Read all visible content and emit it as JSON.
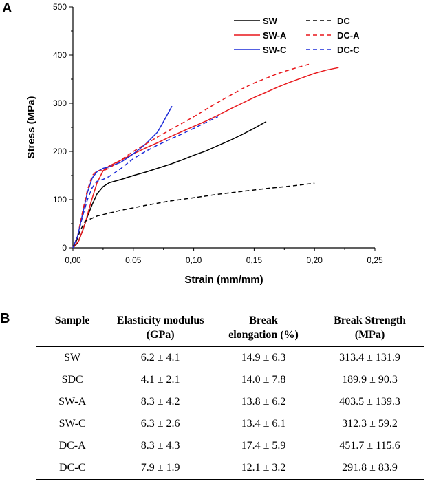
{
  "panels": {
    "a": "A",
    "b": "B"
  },
  "chart_data": {
    "type": "line",
    "xlabel": "Strain (mm/mm)",
    "ylabel": "Stress (MPa)",
    "xlim": [
      0,
      0.25
    ],
    "ylim": [
      0,
      500
    ],
    "x_ticks": [
      "0,00",
      "0,05",
      "0,10",
      "0,15",
      "0,20",
      "0,25"
    ],
    "y_ticks": [
      "0",
      "100",
      "200",
      "300",
      "400",
      "500"
    ],
    "x_tick_values": [
      0,
      0.05,
      0.1,
      0.15,
      0.2,
      0.25
    ],
    "y_tick_values": [
      0,
      100,
      200,
      300,
      400,
      500
    ],
    "legend_position": "top-right",
    "series": [
      {
        "name": "SW",
        "color": "#000000",
        "dash": "solid",
        "points": [
          [
            0,
            0
          ],
          [
            0.004,
            10
          ],
          [
            0.008,
            35
          ],
          [
            0.012,
            65
          ],
          [
            0.016,
            90
          ],
          [
            0.02,
            112
          ],
          [
            0.025,
            127
          ],
          [
            0.03,
            135
          ],
          [
            0.04,
            142
          ],
          [
            0.05,
            150
          ],
          [
            0.06,
            157
          ],
          [
            0.07,
            165
          ],
          [
            0.08,
            173
          ],
          [
            0.09,
            182
          ],
          [
            0.1,
            192
          ],
          [
            0.11,
            201
          ],
          [
            0.12,
            212
          ],
          [
            0.13,
            223
          ],
          [
            0.14,
            235
          ],
          [
            0.15,
            248
          ],
          [
            0.16,
            262
          ]
        ]
      },
      {
        "name": "SW-A",
        "color": "#e8171b",
        "dash": "solid",
        "points": [
          [
            0,
            0
          ],
          [
            0.005,
            15
          ],
          [
            0.01,
            50
          ],
          [
            0.015,
            95
          ],
          [
            0.02,
            135
          ],
          [
            0.025,
            160
          ],
          [
            0.03,
            170
          ],
          [
            0.04,
            182
          ],
          [
            0.05,
            195
          ],
          [
            0.06,
            207
          ],
          [
            0.07,
            218
          ],
          [
            0.08,
            230
          ],
          [
            0.09,
            241
          ],
          [
            0.1,
            252
          ],
          [
            0.11,
            263
          ],
          [
            0.12,
            275
          ],
          [
            0.13,
            288
          ],
          [
            0.14,
            300
          ],
          [
            0.15,
            312
          ],
          [
            0.16,
            323
          ],
          [
            0.17,
            334
          ],
          [
            0.18,
            344
          ],
          [
            0.19,
            353
          ],
          [
            0.2,
            362
          ],
          [
            0.21,
            369
          ],
          [
            0.22,
            374
          ]
        ]
      },
      {
        "name": "SW-C",
        "color": "#1c2bd8",
        "dash": "solid",
        "points": [
          [
            0,
            0
          ],
          [
            0.004,
            25
          ],
          [
            0.008,
            70
          ],
          [
            0.012,
            115
          ],
          [
            0.016,
            145
          ],
          [
            0.02,
            158
          ],
          [
            0.025,
            165
          ],
          [
            0.03,
            168
          ],
          [
            0.04,
            178
          ],
          [
            0.05,
            195
          ],
          [
            0.06,
            215
          ],
          [
            0.07,
            240
          ],
          [
            0.075,
            262
          ],
          [
            0.08,
            285
          ],
          [
            0.082,
            294
          ]
        ]
      },
      {
        "name": "DC",
        "color": "#000000",
        "dash": "dashed",
        "points": [
          [
            0,
            0
          ],
          [
            0.003,
            15
          ],
          [
            0.006,
            35
          ],
          [
            0.01,
            55
          ],
          [
            0.02,
            66
          ],
          [
            0.04,
            78
          ],
          [
            0.06,
            88
          ],
          [
            0.08,
            97
          ],
          [
            0.1,
            104
          ],
          [
            0.12,
            111
          ],
          [
            0.14,
            117
          ],
          [
            0.16,
            123
          ],
          [
            0.18,
            128
          ],
          [
            0.2,
            134
          ]
        ]
      },
      {
        "name": "DC-A",
        "color": "#e8171b",
        "dash": "dashed",
        "points": [
          [
            0,
            0
          ],
          [
            0.004,
            25
          ],
          [
            0.008,
            75
          ],
          [
            0.012,
            120
          ],
          [
            0.016,
            150
          ],
          [
            0.02,
            160
          ],
          [
            0.025,
            160
          ],
          [
            0.03,
            165
          ],
          [
            0.04,
            183
          ],
          [
            0.05,
            200
          ],
          [
            0.06,
            215
          ],
          [
            0.07,
            230
          ],
          [
            0.08,
            244
          ],
          [
            0.09,
            258
          ],
          [
            0.1,
            272
          ],
          [
            0.11,
            287
          ],
          [
            0.12,
            302
          ],
          [
            0.13,
            316
          ],
          [
            0.14,
            330
          ],
          [
            0.15,
            342
          ],
          [
            0.16,
            352
          ],
          [
            0.17,
            362
          ],
          [
            0.18,
            370
          ],
          [
            0.19,
            377
          ],
          [
            0.197,
            382
          ]
        ]
      },
      {
        "name": "DC-C",
        "color": "#1c2bd8",
        "dash": "dashed",
        "points": [
          [
            0,
            0
          ],
          [
            0.004,
            25
          ],
          [
            0.008,
            65
          ],
          [
            0.012,
            100
          ],
          [
            0.016,
            125
          ],
          [
            0.02,
            138
          ],
          [
            0.025,
            142
          ],
          [
            0.03,
            148
          ],
          [
            0.04,
            165
          ],
          [
            0.05,
            185
          ],
          [
            0.06,
            200
          ],
          [
            0.07,
            213
          ],
          [
            0.08,
            225
          ],
          [
            0.09,
            236
          ],
          [
            0.1,
            248
          ],
          [
            0.11,
            260
          ],
          [
            0.12,
            272
          ]
        ]
      }
    ]
  },
  "table": {
    "headers": [
      {
        "line1": "Sample",
        "line2": ""
      },
      {
        "line1": "Elasticity modulus",
        "line2": "(GPa)"
      },
      {
        "line1": "Break",
        "line2": "elongation (%)"
      },
      {
        "line1": "Break Strength",
        "line2": "(MPa)"
      }
    ],
    "rows": [
      [
        "SW",
        "6.2 ± 4.1",
        "14.9 ± 6.3",
        "313.4 ± 131.9"
      ],
      [
        "SDC",
        "4.1 ± 2.1",
        "14.0 ± 7.8",
        "189.9 ± 90.3"
      ],
      [
        "SW-A",
        "8.3 ± 4.2",
        "13.8 ± 6.2",
        "403.5 ± 139.3"
      ],
      [
        "SW-C",
        "6.3 ± 2.6",
        "13.4 ± 6.1",
        "312.3 ± 59.2"
      ],
      [
        "DC-A",
        "8.3 ± 4.3",
        "17.4 ± 5.9",
        "451.7 ± 115.6"
      ],
      [
        "DC-C",
        "7.9 ± 1.9",
        "12.1 ± 3.2",
        "291.8 ± 83.9"
      ]
    ]
  }
}
